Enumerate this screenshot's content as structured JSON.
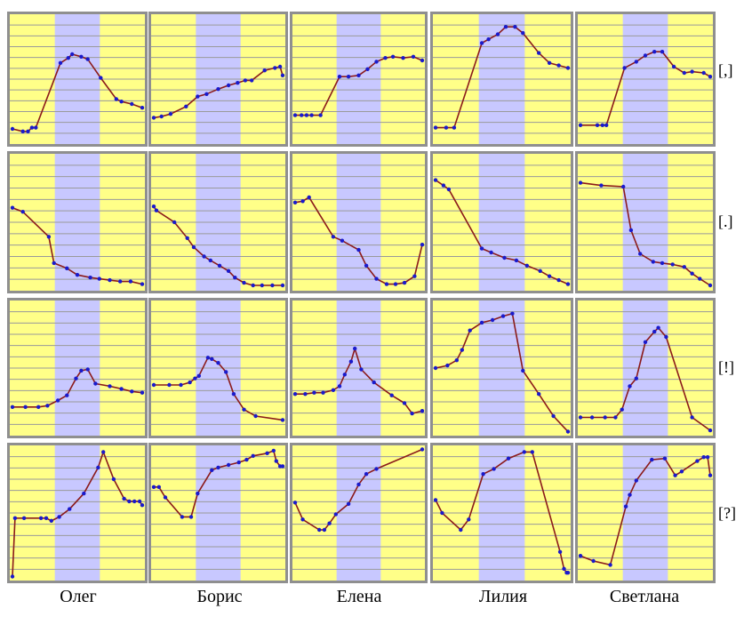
{
  "colors": {
    "yellow": "#ffff88",
    "violet": "#c8c8ff",
    "line": "#8b1a1a",
    "point": "#1a1acc",
    "gridline": "#9a9a9a",
    "border": "#8f8f8f"
  },
  "row_labels": [
    "[,]",
    "[.]",
    "[!]",
    "[?]"
  ],
  "col_labels": [
    "Олег",
    "Борис",
    "Елена",
    "Лилия",
    "Светлана"
  ],
  "chart_data": [
    {
      "type": "line",
      "row_label": "[,]",
      "col_label": "Олег",
      "x": [
        0,
        0.08,
        0.12,
        0.15,
        0.18,
        0.37,
        0.43,
        0.46,
        0.53,
        0.58,
        0.68,
        0.8,
        0.84,
        0.92,
        1.0
      ],
      "y": [
        0.1,
        0.08,
        0.08,
        0.11,
        0.11,
        0.63,
        0.67,
        0.7,
        0.68,
        0.66,
        0.51,
        0.34,
        0.32,
        0.3,
        0.27
      ]
    },
    {
      "type": "line",
      "row_label": "[,]",
      "col_label": "Борис",
      "x": [
        0,
        0.06,
        0.13,
        0.25,
        0.34,
        0.41,
        0.5,
        0.58,
        0.65,
        0.71,
        0.76,
        0.86,
        0.94,
        0.98,
        1.0
      ],
      "y": [
        0.19,
        0.2,
        0.22,
        0.28,
        0.36,
        0.38,
        0.42,
        0.45,
        0.47,
        0.49,
        0.49,
        0.57,
        0.59,
        0.6,
        0.53
      ]
    },
    {
      "type": "line",
      "row_label": "[,]",
      "col_label": "Елена",
      "x": [
        0,
        0.05,
        0.09,
        0.13,
        0.2,
        0.35,
        0.42,
        0.5,
        0.57,
        0.64,
        0.71,
        0.77,
        0.85,
        0.93,
        1.0
      ],
      "y": [
        0.21,
        0.21,
        0.21,
        0.21,
        0.21,
        0.52,
        0.52,
        0.53,
        0.58,
        0.64,
        0.67,
        0.68,
        0.67,
        0.68,
        0.65
      ]
    },
    {
      "type": "line",
      "row_label": "[,]",
      "col_label": "Лилия",
      "x": [
        0,
        0.08,
        0.14,
        0.35,
        0.4,
        0.47,
        0.53,
        0.6,
        0.66,
        0.78,
        0.86,
        0.93,
        1.0
      ],
      "y": [
        0.11,
        0.11,
        0.11,
        0.79,
        0.82,
        0.86,
        0.92,
        0.92,
        0.87,
        0.71,
        0.63,
        0.61,
        0.59
      ]
    },
    {
      "type": "line",
      "row_label": "[,]",
      "col_label": "Светлана",
      "x": [
        0,
        0.13,
        0.17,
        0.2,
        0.34,
        0.43,
        0.5,
        0.57,
        0.63,
        0.72,
        0.8,
        0.86,
        0.95,
        1.0
      ],
      "y": [
        0.13,
        0.13,
        0.13,
        0.13,
        0.59,
        0.64,
        0.69,
        0.72,
        0.72,
        0.6,
        0.55,
        0.56,
        0.55,
        0.52
      ]
    },
    {
      "type": "line",
      "row_label": "[.]",
      "col_label": "Олег",
      "x": [
        0,
        0.08,
        0.28,
        0.32,
        0.42,
        0.5,
        0.6,
        0.67,
        0.75,
        0.83,
        0.91,
        1.0
      ],
      "y": [
        0.61,
        0.58,
        0.39,
        0.19,
        0.15,
        0.1,
        0.08,
        0.07,
        0.06,
        0.05,
        0.05,
        0.03
      ]
    },
    {
      "type": "line",
      "row_label": "[.]",
      "col_label": "Борис",
      "x": [
        0,
        0.02,
        0.16,
        0.26,
        0.31,
        0.39,
        0.44,
        0.51,
        0.58,
        0.63,
        0.7,
        0.77,
        0.84,
        0.92,
        1.0
      ],
      "y": [
        0.62,
        0.59,
        0.5,
        0.38,
        0.31,
        0.24,
        0.21,
        0.17,
        0.13,
        0.08,
        0.04,
        0.02,
        0.02,
        0.02,
        0.02
      ]
    },
    {
      "type": "line",
      "row_label": "[.]",
      "col_label": "Елена",
      "x": [
        0,
        0.06,
        0.11,
        0.3,
        0.37,
        0.5,
        0.56,
        0.64,
        0.72,
        0.79,
        0.86,
        0.94,
        1.0
      ],
      "y": [
        0.65,
        0.66,
        0.69,
        0.39,
        0.36,
        0.29,
        0.17,
        0.07,
        0.03,
        0.03,
        0.04,
        0.09,
        0.33
      ]
    },
    {
      "type": "line",
      "row_label": "[.]",
      "col_label": "Лилия",
      "x": [
        0,
        0.06,
        0.1,
        0.35,
        0.42,
        0.52,
        0.61,
        0.69,
        0.79,
        0.86,
        0.93,
        1.0
      ],
      "y": [
        0.82,
        0.78,
        0.75,
        0.3,
        0.27,
        0.23,
        0.21,
        0.17,
        0.13,
        0.09,
        0.06,
        0.03
      ]
    },
    {
      "type": "line",
      "row_label": "[.]",
      "col_label": "Светлана",
      "x": [
        0,
        0.16,
        0.33,
        0.39,
        0.46,
        0.56,
        0.63,
        0.71,
        0.8,
        0.86,
        0.92,
        1.0
      ],
      "y": [
        0.8,
        0.78,
        0.77,
        0.44,
        0.26,
        0.2,
        0.19,
        0.18,
        0.16,
        0.11,
        0.07,
        0.02
      ]
    },
    {
      "type": "line",
      "row_label": "[!]",
      "col_label": "Олег",
      "x": [
        0,
        0.1,
        0.2,
        0.27,
        0.35,
        0.42,
        0.49,
        0.53,
        0.58,
        0.64,
        0.75,
        0.84,
        0.92,
        1.0
      ],
      "y": [
        0.2,
        0.2,
        0.2,
        0.21,
        0.25,
        0.29,
        0.42,
        0.48,
        0.49,
        0.38,
        0.36,
        0.34,
        0.32,
        0.31
      ]
    },
    {
      "type": "line",
      "row_label": "[!]",
      "col_label": "Борис",
      "x": [
        0,
        0.12,
        0.21,
        0.28,
        0.32,
        0.35,
        0.42,
        0.45,
        0.5,
        0.56,
        0.62,
        0.7,
        0.79,
        1.0
      ],
      "y": [
        0.37,
        0.37,
        0.37,
        0.39,
        0.42,
        0.44,
        0.58,
        0.57,
        0.54,
        0.47,
        0.3,
        0.18,
        0.13,
        0.1
      ]
    },
    {
      "type": "line",
      "row_label": "[!]",
      "col_label": "Елена",
      "x": [
        0,
        0.08,
        0.15,
        0.22,
        0.3,
        0.35,
        0.39,
        0.44,
        0.47,
        0.52,
        0.62,
        0.76,
        0.86,
        0.92,
        1.0
      ],
      "y": [
        0.3,
        0.3,
        0.31,
        0.31,
        0.33,
        0.36,
        0.45,
        0.55,
        0.65,
        0.49,
        0.39,
        0.29,
        0.23,
        0.15,
        0.17
      ]
    },
    {
      "type": "line",
      "row_label": "[!]",
      "col_label": "Лилия",
      "x": [
        0,
        0.09,
        0.16,
        0.2,
        0.26,
        0.35,
        0.43,
        0.51,
        0.58,
        0.66,
        0.78,
        0.89,
        1.0
      ],
      "y": [
        0.5,
        0.52,
        0.56,
        0.64,
        0.79,
        0.85,
        0.87,
        0.9,
        0.92,
        0.48,
        0.3,
        0.13,
        0.01
      ]
    },
    {
      "type": "line",
      "row_label": "[!]",
      "col_label": "Светлана",
      "x": [
        0,
        0.09,
        0.19,
        0.27,
        0.32,
        0.38,
        0.43,
        0.5,
        0.57,
        0.6,
        0.66,
        0.86,
        1.0
      ],
      "y": [
        0.12,
        0.12,
        0.12,
        0.12,
        0.18,
        0.36,
        0.42,
        0.7,
        0.78,
        0.81,
        0.74,
        0.12,
        0.02
      ]
    },
    {
      "type": "line",
      "row_label": "[?]",
      "col_label": "Олег",
      "x": [
        0,
        0.02,
        0.09,
        0.22,
        0.26,
        0.3,
        0.36,
        0.44,
        0.55,
        0.66,
        0.7,
        0.78,
        0.86,
        0.9,
        0.94,
        0.98,
        1.0
      ],
      "y": [
        0.01,
        0.46,
        0.46,
        0.46,
        0.46,
        0.44,
        0.47,
        0.53,
        0.65,
        0.85,
        0.97,
        0.76,
        0.61,
        0.59,
        0.59,
        0.59,
        0.56
      ]
    },
    {
      "type": "line",
      "row_label": "[?]",
      "col_label": "Борис",
      "x": [
        0,
        0.04,
        0.09,
        0.22,
        0.29,
        0.34,
        0.45,
        0.5,
        0.58,
        0.66,
        0.72,
        0.77,
        0.88,
        0.93,
        0.95,
        0.98,
        1.0
      ],
      "y": [
        0.7,
        0.7,
        0.62,
        0.47,
        0.47,
        0.65,
        0.83,
        0.85,
        0.87,
        0.89,
        0.91,
        0.94,
        0.96,
        0.98,
        0.9,
        0.86,
        0.86
      ]
    },
    {
      "type": "line",
      "row_label": "[?]",
      "col_label": "Елена",
      "x": [
        0,
        0.06,
        0.19,
        0.23,
        0.27,
        0.32,
        0.42,
        0.5,
        0.56,
        0.64,
        1.0
      ],
      "y": [
        0.58,
        0.45,
        0.37,
        0.37,
        0.42,
        0.49,
        0.57,
        0.72,
        0.8,
        0.84,
        0.99
      ]
    },
    {
      "type": "line",
      "row_label": "[?]",
      "col_label": "Лилия",
      "x": [
        0,
        0.05,
        0.19,
        0.25,
        0.36,
        0.44,
        0.55,
        0.67,
        0.73,
        0.94,
        0.97,
        0.99,
        1.0
      ],
      "y": [
        0.6,
        0.5,
        0.37,
        0.45,
        0.8,
        0.84,
        0.92,
        0.97,
        0.97,
        0.2,
        0.07,
        0.04,
        0.04
      ]
    },
    {
      "type": "line",
      "row_label": "[?]",
      "col_label": "Светлана",
      "x": [
        0,
        0.1,
        0.23,
        0.35,
        0.38,
        0.43,
        0.55,
        0.65,
        0.73,
        0.78,
        0.9,
        0.95,
        0.98,
        1.0
      ],
      "y": [
        0.17,
        0.13,
        0.1,
        0.55,
        0.64,
        0.75,
        0.91,
        0.92,
        0.79,
        0.82,
        0.9,
        0.93,
        0.93,
        0.79
      ]
    }
  ]
}
